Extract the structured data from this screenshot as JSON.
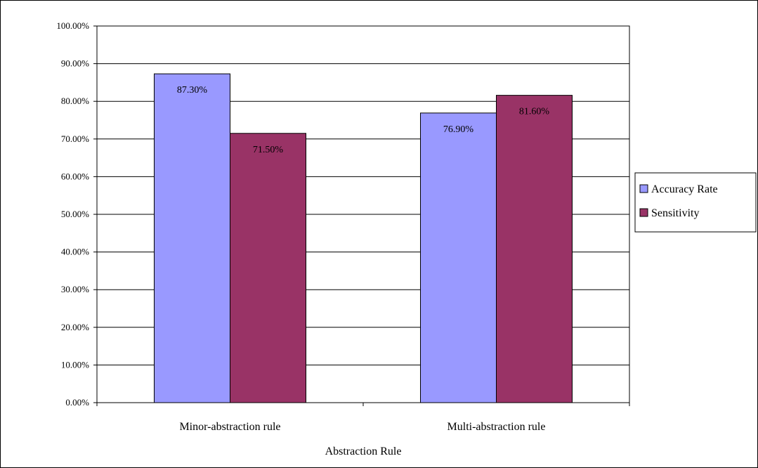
{
  "chart_data": {
    "type": "bar",
    "categories": [
      "Minor-abstraction rule",
      "Multi-abstraction rule"
    ],
    "series": [
      {
        "name": "Accuracy Rate",
        "values": [
          0.873,
          0.769
        ],
        "labels": [
          "87.30%",
          "76.90%"
        ],
        "color": "#9999FF"
      },
      {
        "name": "Sensitivity",
        "values": [
          0.715,
          0.816
        ],
        "labels": [
          "71.50%",
          "81.60%"
        ],
        "color": "#993366"
      }
    ],
    "title": "",
    "xlabel": "Abstraction Rule",
    "ylabel": "",
    "ylim": [
      0,
      1
    ],
    "yticks": [
      0,
      0.1,
      0.2,
      0.3,
      0.4,
      0.5,
      0.6,
      0.7,
      0.8,
      0.9,
      1.0
    ],
    "ytick_labels": [
      "0.00%",
      "10.00%",
      "20.00%",
      "30.00%",
      "40.00%",
      "50.00%",
      "60.00%",
      "70.00%",
      "80.00%",
      "90.00%",
      "100.00%"
    ],
    "grid": true,
    "legend": "right"
  }
}
